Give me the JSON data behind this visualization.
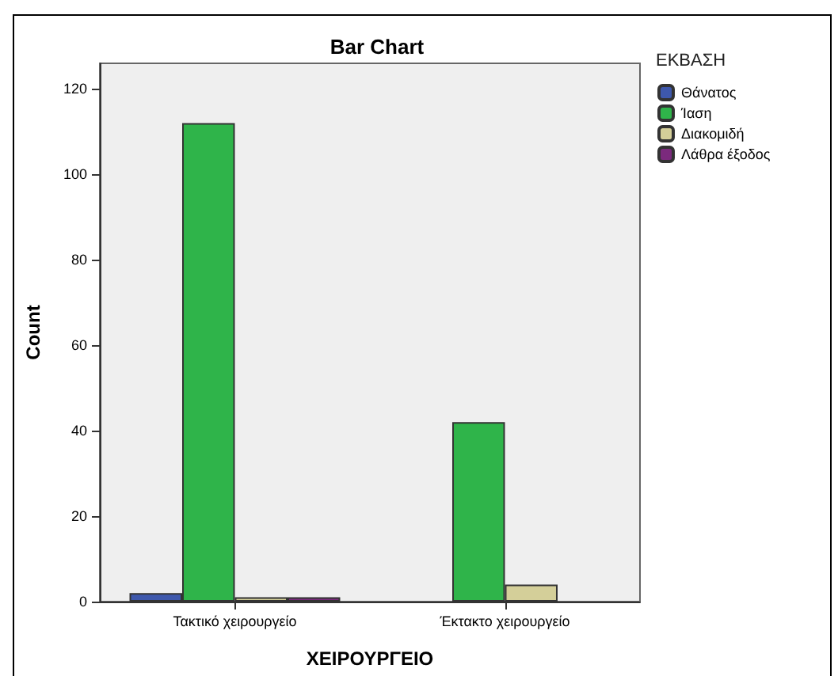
{
  "chart_data": {
    "type": "bar",
    "title": "Bar Chart",
    "xlabel": "ΧΕΙΡΟΥΡΓΕΙΟ",
    "ylabel": "Count",
    "legend_title": "ΕΚΒΑΣΗ",
    "categories": [
      "Τακτικό χειρουργείο",
      "Έκτακτο χειρουργείο"
    ],
    "series": [
      {
        "name": "Θάνατος",
        "color": "#3e58ac",
        "values": [
          2,
          null
        ]
      },
      {
        "name": "Ίαση",
        "color": "#2fb44a",
        "values": [
          112,
          42
        ]
      },
      {
        "name": "Διακομιδή",
        "color": "#d4cf99",
        "values": [
          1,
          4
        ]
      },
      {
        "name": "Λάθρα έξοδος",
        "color": "#7b2a7d",
        "values": [
          1,
          null
        ]
      }
    ],
    "ylim": [
      0,
      126
    ],
    "yticks": [
      0,
      20,
      40,
      60,
      80,
      100,
      120
    ],
    "grid": false,
    "legend": "right"
  }
}
